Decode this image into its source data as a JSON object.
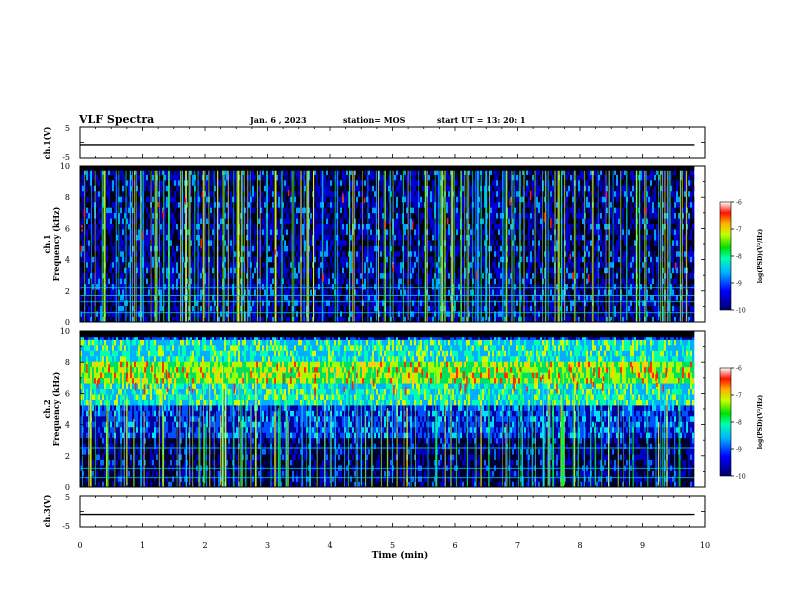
{
  "header": {
    "title": "VLF Spectra",
    "date": "Jan. 6 , 2023",
    "station": "station= MOS",
    "start": "start UT =  13: 20: 1"
  },
  "chart_data": [
    {
      "type": "line",
      "panel": "ch1-waveform",
      "ylabel": "ch.1(V)",
      "ylim": [
        -5,
        5
      ],
      "y_ticks": [
        "5",
        "-5"
      ],
      "x_range": [
        0,
        10
      ],
      "series": [
        {
          "x": [
            0,
            9.83
          ],
          "values": [
            -0.8,
            -0.8
          ]
        }
      ]
    },
    {
      "type": "heatmap",
      "panel": "ch1-spectrogram",
      "ylabel": "ch.1\nFrequency (kHz)",
      "ylim": [
        0,
        10
      ],
      "y_ticks": [
        "0",
        "2",
        "4",
        "6",
        "8",
        "10"
      ],
      "x_range": [
        0,
        10
      ],
      "data_end_min": 9.83,
      "colorbar": {
        "label": "log(PSD)(V²/Hz)",
        "range": [
          -10,
          -6
        ],
        "ticks": [
          "-6",
          "-7",
          "-8",
          "-9",
          "-10"
        ]
      },
      "features": {
        "band_top_khz": 9.7,
        "dominant_low_lines_khz": [
          0.6,
          1.3,
          1.7,
          2.2
        ]
      }
    },
    {
      "type": "heatmap",
      "panel": "ch2-spectrogram",
      "ylabel": "ch.2\nFrequency (kHz)",
      "ylim": [
        0,
        10
      ],
      "y_ticks": [
        "0",
        "2",
        "4",
        "6",
        "8",
        "10"
      ],
      "x_range": [
        0,
        10
      ],
      "data_end_min": 9.83,
      "colorbar": {
        "label": "log(PSD)(V²/Hz)",
        "range": [
          -10,
          -6
        ],
        "ticks": [
          "-6",
          "-7",
          "-8",
          "-9",
          "-10"
        ]
      },
      "features": {
        "band_top_khz": 9.6,
        "peak_band_khz": [
          6.3,
          7.8
        ],
        "dominant_low_lines_khz": [
          0.6,
          1.2,
          2.5
        ]
      }
    },
    {
      "type": "line",
      "panel": "ch3-waveform",
      "ylabel": "ch.3(V)",
      "ylim": [
        -5,
        5
      ],
      "y_ticks": [
        "5",
        "-5"
      ],
      "xlabel": "Time (min)",
      "x_range": [
        0,
        10
      ],
      "x_ticks": [
        "0",
        "1",
        "2",
        "3",
        "4",
        "5",
        "6",
        "7",
        "8",
        "9",
        "10"
      ],
      "series": [
        {
          "x": [
            0,
            9.83
          ],
          "values": [
            -1.0,
            -1.0
          ]
        }
      ]
    }
  ]
}
